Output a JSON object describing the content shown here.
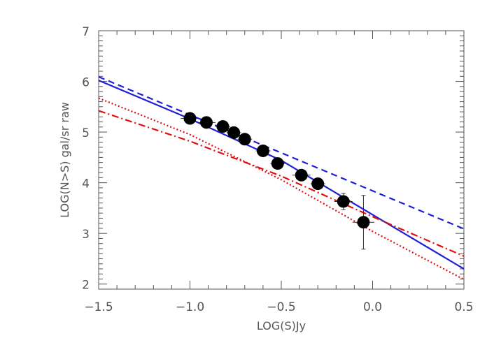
{
  "chart_data": {
    "type": "scatter",
    "title": "",
    "xlabel": "LOG(S)Jy",
    "ylabel": "LOG(N>S)  gal/sr raw",
    "xlim": [
      -1.5,
      0.5
    ],
    "ylim": [
      1.9,
      7.0
    ],
    "xticks": [
      -1.5,
      -1.0,
      -0.5,
      0.0,
      0.5
    ],
    "xtick_labels": [
      "−1.5",
      "−1.0",
      "−0.5",
      "0.0",
      "0.5"
    ],
    "yticks": [
      2,
      3,
      4,
      5,
      6,
      7
    ],
    "ytick_labels": [
      "2",
      "3",
      "4",
      "5",
      "6",
      "7"
    ],
    "grid": false,
    "legend": "none",
    "points": {
      "color": "#000000",
      "x": [
        -1.0,
        -0.91,
        -0.82,
        -0.76,
        -0.7,
        -0.6,
        -0.52,
        -0.39,
        -0.3,
        -0.16,
        -0.05
      ],
      "y": [
        5.27,
        5.19,
        5.11,
        4.99,
        4.86,
        4.63,
        4.38,
        4.15,
        3.98,
        3.63,
        3.22
      ],
      "xerr": [
        0.05,
        0.05,
        0.04,
        0.04,
        0.04,
        0.04,
        0.04,
        0.05,
        0.04,
        0.05,
        0.06
      ],
      "yerr": [
        0.03,
        0.03,
        0.03,
        0.04,
        0.04,
        0.05,
        0.06,
        0.06,
        0.08,
        0.16,
        0.53
      ]
    },
    "series": [
      {
        "style": "solid",
        "color": "#1f1fd6",
        "x": [
          -1.5,
          -1.0,
          -0.5,
          0.0,
          0.5
        ],
        "y": [
          6.02,
          5.26,
          4.44,
          3.37,
          2.3
        ]
      },
      {
        "style": "dashed",
        "color": "#1f1fd6",
        "x": [
          -1.5,
          0.5
        ],
        "y": [
          6.09,
          3.09
        ]
      },
      {
        "style": "dotted",
        "color": "#e01010",
        "x": [
          -1.5,
          -1.0,
          -0.5,
          0.0,
          0.5
        ],
        "y": [
          5.67,
          4.95,
          4.06,
          3.04,
          2.09
        ]
      },
      {
        "style": "dashdot",
        "color": "#e01010",
        "x": [
          -1.5,
          -1.0,
          -0.5,
          0.0,
          0.5
        ],
        "y": [
          5.42,
          4.82,
          4.13,
          3.33,
          2.55
        ]
      }
    ]
  }
}
